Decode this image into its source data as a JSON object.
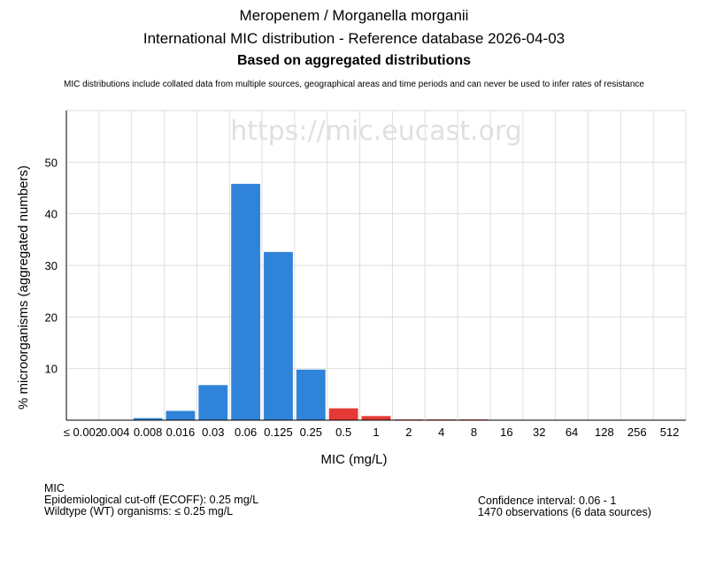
{
  "header": {
    "title_line1": "Meropenem / Morganella morganii",
    "title_line2": "International MIC distribution - Reference database 2026-04-03",
    "title_line3": "Based on aggregated distributions",
    "note": "MIC distributions include collated data from multiple sources, geographical areas and time periods and can never be used to infer rates of resistance"
  },
  "watermark": "https://mic.eucast.org",
  "chart_data": {
    "type": "bar",
    "title": "Meropenem / Morganella morganii",
    "xlabel": "MIC (mg/L)",
    "ylabel": "% microorganisms (aggregated numbers)",
    "categories": [
      "≤ 0.002",
      "0.004",
      "0.008",
      "0.016",
      "0.03",
      "0.06",
      "0.125",
      "0.25",
      "0.5",
      "1",
      "2",
      "4",
      "8",
      "16",
      "32",
      "64",
      "128",
      "256",
      "512"
    ],
    "values": [
      0,
      0,
      0.4,
      1.8,
      6.8,
      45.8,
      32.6,
      9.8,
      2.3,
      0.8,
      0.15,
      0.15,
      0.15,
      0,
      0,
      0,
      0,
      0,
      0
    ],
    "ylim": [
      0,
      60
    ],
    "yticks": [
      10,
      20,
      30,
      40,
      50
    ],
    "grid": true,
    "colors": {
      "wild_type": "#2f83d9",
      "non_wild_type": "#e53935"
    },
    "wild_type_max_category": "0.25"
  },
  "footer": {
    "left": {
      "line1": "MIC",
      "line2": "Epidemiological cut-off (ECOFF): 0.25 mg/L",
      "line3": "Wildtype (WT) organisms: ≤ 0.25 mg/L"
    },
    "right": {
      "line1": "Confidence interval: 0.06 - 1",
      "line2": "1470 observations (6 data sources)"
    }
  }
}
